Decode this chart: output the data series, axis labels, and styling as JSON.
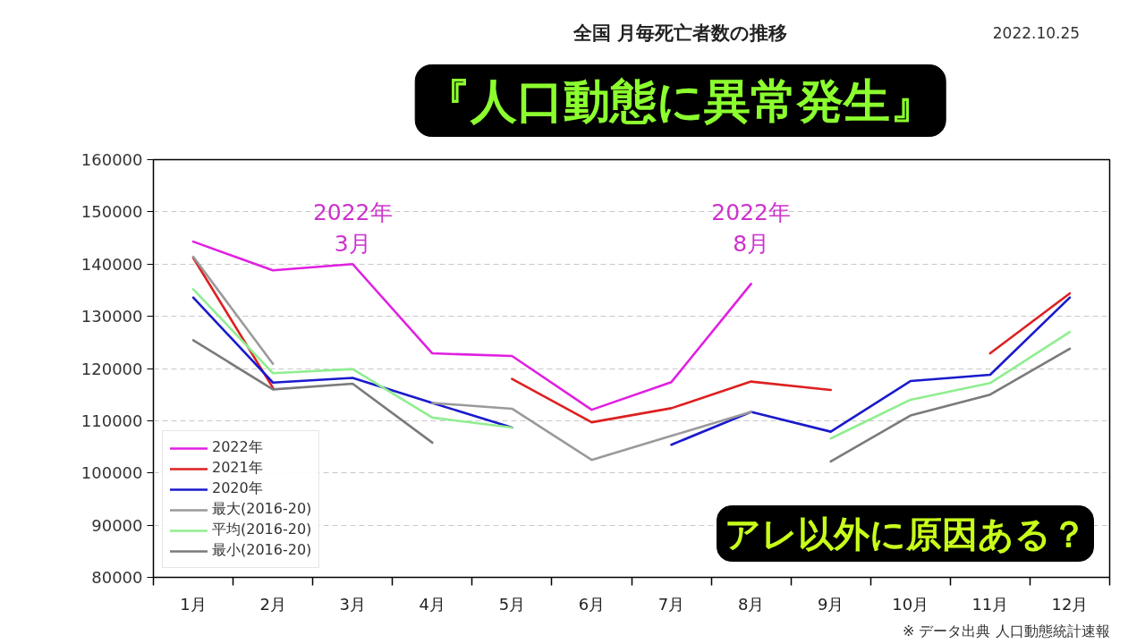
{
  "chart_data": {
    "type": "line",
    "title": "全国 月毎死亡者数の推移",
    "annotations": [
      "2022.10.25",
      "※ データ出典 人口動態統計速報",
      "『人口動態に異常発生』",
      "アレ以外に原因ある？",
      {
        "text": "2022年\n3月",
        "x": "3月",
        "y": 140000
      },
      {
        "text": "2022年\n8月",
        "x": "8月",
        "y": 136200
      }
    ],
    "categories": [
      "1月",
      "2月",
      "3月",
      "4月",
      "5月",
      "6月",
      "7月",
      "8月",
      "9月",
      "10月",
      "11月",
      "12月"
    ],
    "series": [
      {
        "name": "2022年",
        "color": "#e020e0",
        "values": [
          144300,
          138800,
          140000,
          122900,
          122400,
          112100,
          117400,
          136200,
          null,
          null,
          null,
          null
        ]
      },
      {
        "name": "2021年",
        "color": "#dd2020",
        "values": [
          141200,
          116300,
          null,
          null,
          118000,
          109700,
          112400,
          117500,
          115900,
          null,
          122900,
          134400
        ]
      },
      {
        "name": "2020年",
        "color": "#1a1acc",
        "values": [
          133600,
          117300,
          118200,
          113400,
          108700,
          null,
          105400,
          111700,
          107900,
          117600,
          118800,
          133600
        ]
      },
      {
        "name": "最大(2016-20)",
        "color": "#9a9a9a",
        "values": [
          141400,
          120900,
          null,
          113400,
          112300,
          102500,
          107100,
          111700,
          null,
          null,
          null,
          null
        ]
      },
      {
        "name": "平均(2016-20)",
        "color": "#90ee90",
        "values": [
          135200,
          119100,
          119900,
          110600,
          108700,
          null,
          null,
          null,
          106600,
          114000,
          117200,
          127000
        ]
      },
      {
        "name": "最小(2016-20)",
        "color": "#7a7a7a",
        "values": [
          125400,
          116000,
          117100,
          105800,
          null,
          null,
          null,
          null,
          102200,
          111000,
          115000,
          123800
        ]
      }
    ],
    "ylim": [
      80000,
      160000
    ],
    "yticks": [
      80000,
      90000,
      100000,
      110000,
      120000,
      130000,
      140000,
      150000,
      160000
    ],
    "grid": "y",
    "legend": "bottom left"
  }
}
